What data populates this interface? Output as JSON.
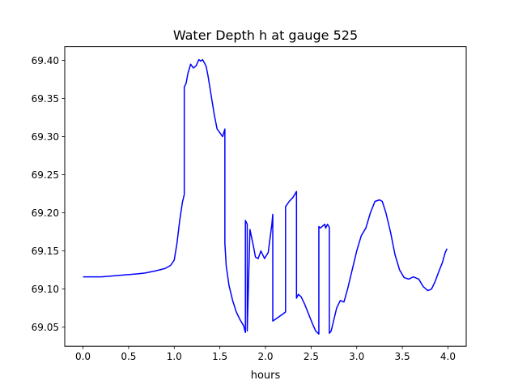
{
  "chart_data": {
    "type": "line",
    "title": "Water Depth h at gauge 525",
    "xlabel": "hours",
    "ylabel": "",
    "xlim": [
      -0.2,
      4.2
    ],
    "ylim": [
      69.025,
      69.418
    ],
    "xticks": [
      0.0,
      0.5,
      1.0,
      1.5,
      2.0,
      2.5,
      3.0,
      3.5,
      4.0
    ],
    "xtick_labels": [
      "0.0",
      "0.5",
      "1.0",
      "1.5",
      "2.0",
      "2.5",
      "3.0",
      "3.5",
      "4.0"
    ],
    "yticks": [
      69.05,
      69.1,
      69.15,
      69.2,
      69.25,
      69.3,
      69.35,
      69.4
    ],
    "ytick_labels": [
      "69.05",
      "69.10",
      "69.15",
      "69.20",
      "69.25",
      "69.30",
      "69.35",
      "69.40"
    ],
    "grid": false,
    "legend": "none",
    "series": [
      {
        "name": "",
        "color": "#0000ff",
        "x": [
          0.0,
          0.2,
          0.4,
          0.6,
          0.68,
          0.8,
          0.9,
          0.96,
          1.0,
          1.03,
          1.06,
          1.09,
          1.11,
          1.11,
          1.13,
          1.15,
          1.18,
          1.21,
          1.24,
          1.27,
          1.29,
          1.31,
          1.33,
          1.35,
          1.37,
          1.39,
          1.41,
          1.44,
          1.47,
          1.5,
          1.53,
          1.555,
          1.555,
          1.57,
          1.6,
          1.64,
          1.68,
          1.72,
          1.76,
          1.78,
          1.78,
          1.8,
          1.8,
          1.83,
          1.87,
          1.89,
          1.92,
          1.95,
          1.99,
          2.03,
          2.07,
          2.08,
          2.08,
          2.14,
          2.2,
          2.22,
          2.22,
          2.26,
          2.3,
          2.34,
          2.34,
          2.36,
          2.39,
          2.43,
          2.47,
          2.51,
          2.55,
          2.585,
          2.585,
          2.6,
          2.63,
          2.65,
          2.66,
          2.68,
          2.7,
          2.7,
          2.72,
          2.74,
          2.78,
          2.82,
          2.86,
          2.9,
          2.95,
          3.0,
          3.05,
          3.1,
          3.15,
          3.2,
          3.25,
          3.28,
          3.32,
          3.37,
          3.42,
          3.47,
          3.52,
          3.57,
          3.62,
          3.68,
          3.73,
          3.78,
          3.82,
          3.86,
          3.9,
          3.94,
          3.97,
          3.99
        ],
        "y": [
          69.116,
          69.116,
          69.118,
          69.12,
          69.121,
          69.124,
          69.127,
          69.131,
          69.138,
          69.16,
          69.19,
          69.214,
          69.224,
          69.365,
          69.37,
          69.383,
          69.395,
          69.39,
          69.393,
          69.401,
          69.399,
          69.401,
          69.397,
          69.392,
          69.38,
          69.365,
          69.35,
          69.328,
          69.31,
          69.305,
          69.3,
          69.31,
          69.16,
          69.13,
          69.105,
          69.085,
          69.07,
          69.06,
          69.052,
          69.043,
          69.19,
          69.185,
          69.045,
          69.178,
          69.155,
          69.142,
          69.14,
          69.15,
          69.14,
          69.148,
          69.185,
          69.198,
          69.058,
          69.063,
          69.068,
          69.07,
          69.208,
          69.215,
          69.22,
          69.228,
          69.088,
          69.093,
          69.09,
          69.08,
          69.068,
          69.056,
          69.045,
          69.041,
          69.182,
          69.18,
          69.183,
          69.185,
          69.18,
          69.185,
          69.181,
          69.042,
          69.045,
          69.055,
          69.075,
          69.085,
          69.083,
          69.1,
          69.125,
          69.15,
          69.17,
          69.18,
          69.2,
          69.215,
          69.217,
          69.215,
          69.2,
          69.175,
          69.145,
          69.125,
          69.115,
          69.113,
          69.116,
          69.113,
          69.103,
          69.098,
          69.1,
          69.11,
          69.123,
          69.135,
          69.148,
          69.153
        ]
      }
    ]
  }
}
